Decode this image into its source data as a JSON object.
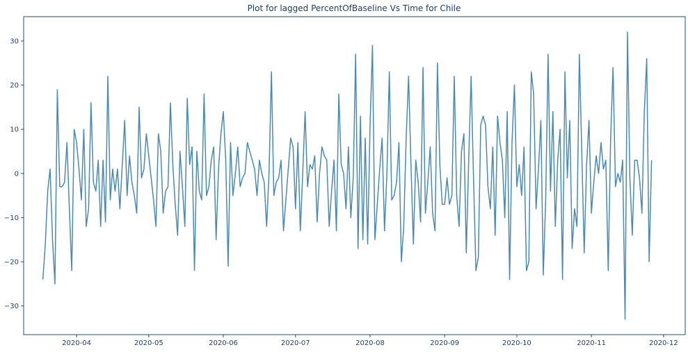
{
  "chart_data": {
    "type": "line",
    "title": "Plot for lagged PercentOfBaseline Vs Time for Chile",
    "xlabel": "",
    "ylabel": "",
    "x_start": "2020-03-18",
    "x_step_days": 1,
    "xlim": [
      "2020-03-10",
      "2020-12-10"
    ],
    "ylim": [
      -36.5,
      35.5
    ],
    "yticks": [
      -30,
      -20,
      -10,
      0,
      10,
      20,
      30
    ],
    "xticks": [
      "2020-04-01",
      "2020-05-01",
      "2020-06-01",
      "2020-07-01",
      "2020-08-01",
      "2020-09-01",
      "2020-10-01",
      "2020-11-01",
      "2020-12-01"
    ],
    "xtick_labels": [
      "2020-04",
      "2020-05",
      "2020-06",
      "2020-07",
      "2020-08",
      "2020-09",
      "2020-10",
      "2020-11",
      "2020-12"
    ],
    "grid": false,
    "line_color": "#4a8ab0",
    "series": [
      {
        "values": [
          -24,
          -16,
          -4,
          1,
          -15,
          -25,
          19,
          -3,
          -3,
          -2,
          7,
          -8,
          -22,
          10,
          7,
          1,
          -6,
          10,
          -12,
          -8,
          16,
          -2,
          -4,
          3,
          -12,
          3,
          -11,
          22,
          -6,
          1,
          -4,
          1,
          -8,
          2,
          12,
          -5,
          4,
          -2,
          -5,
          -9,
          15,
          -1,
          1,
          9,
          4,
          -1,
          -6,
          -12,
          9,
          5,
          -9,
          -4,
          -3,
          16,
          2,
          -7,
          -14,
          5,
          -3,
          -12,
          17,
          2,
          6,
          -22,
          5,
          -4,
          -6,
          18,
          -5,
          -3,
          3,
          6,
          -15,
          1,
          9,
          14,
          3,
          -21,
          7,
          -5,
          0,
          6,
          -3,
          -1,
          0,
          7,
          5,
          3,
          1,
          -5,
          3,
          0,
          -2,
          -12,
          0,
          23,
          -5,
          -2,
          -1,
          3,
          -13,
          -6,
          1,
          8,
          6,
          -8,
          7,
          -13,
          0,
          14,
          -3,
          2,
          1,
          4,
          -11,
          0,
          6,
          4,
          3,
          -12,
          -4,
          3,
          -13,
          18,
          2,
          0,
          -8,
          6,
          -10,
          -1,
          27,
          -17,
          13,
          -15,
          8,
          -16,
          11,
          29,
          -15,
          -7,
          1,
          8,
          -13,
          0,
          23,
          -6,
          -5,
          -2,
          7,
          -20,
          -12,
          8,
          22,
          2,
          -16,
          3,
          -2,
          -11,
          24,
          -9,
          -2,
          6,
          -9,
          -13,
          25,
          2,
          -7,
          -7,
          -1,
          -7,
          -5,
          22,
          -5,
          -12,
          5,
          9,
          -18,
          3,
          22,
          -1,
          -22,
          -19,
          11,
          13,
          11,
          -3,
          -8,
          6,
          -14,
          13,
          7,
          3,
          -10,
          14,
          -24,
          7,
          20,
          -3,
          2,
          -5,
          6,
          -22,
          -20,
          23,
          18,
          -8,
          1,
          12,
          -23,
          -6,
          27,
          -4,
          14,
          -12,
          3,
          10,
          -24,
          23,
          -1,
          12,
          -17,
          -8,
          -12,
          27,
          5,
          -18,
          2,
          12,
          -9,
          -2,
          4,
          0,
          7,
          1,
          3,
          -22,
          8,
          24,
          -3,
          0,
          -2,
          3,
          -33,
          32,
          -1,
          -14,
          3,
          3,
          -1,
          -9,
          14,
          26,
          -20,
          3
        ]
      }
    ]
  }
}
